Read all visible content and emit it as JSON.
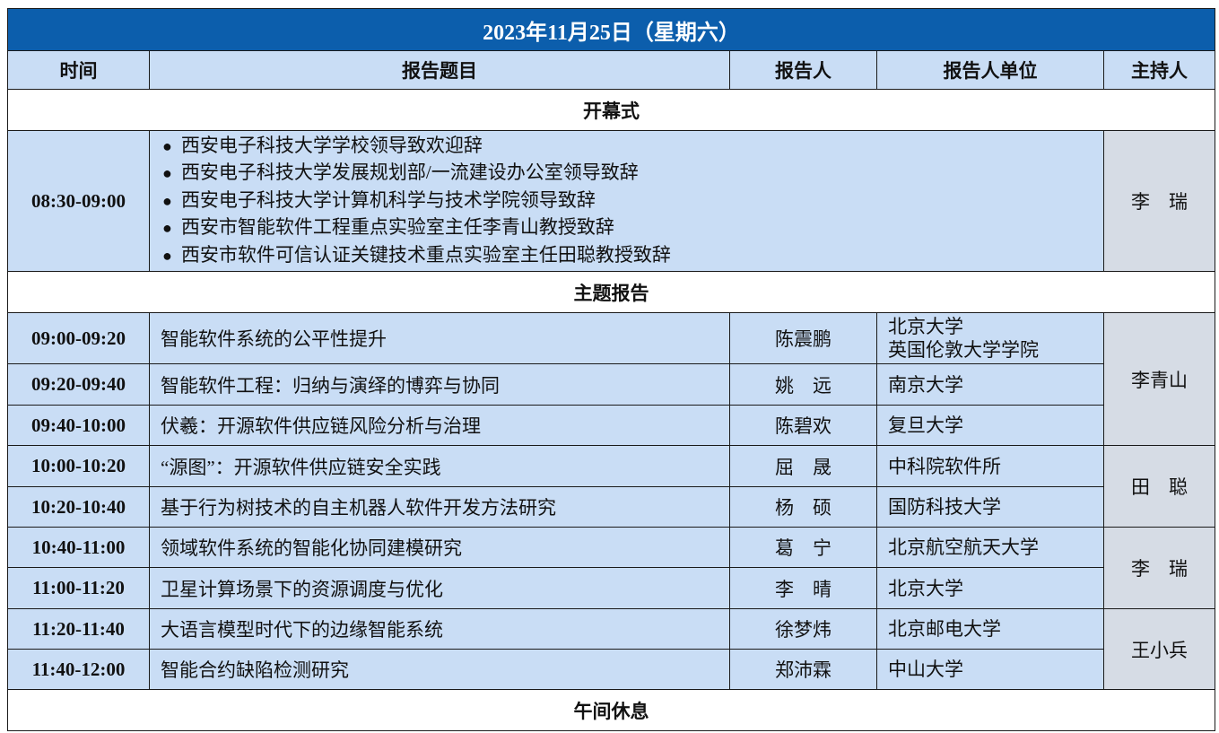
{
  "title": "2023年11月25日（星期六）",
  "headers": [
    "时间",
    "报告题目",
    "报告人",
    "报告人单位",
    "主持人"
  ],
  "sections": {
    "opening": "开幕式",
    "keynote": "主题报告",
    "lunch": "午间休息"
  },
  "opening": {
    "time": "08:30-09:00",
    "items": [
      "西安电子科技大学学校领导致欢迎辞",
      "西安电子科技大学发展规划部/一流建设办公室领导致辞",
      "西安电子科技大学计算机科学与技术学院领导致辞",
      "西安市智能软件工程重点实验室主任李青山教授致辞",
      "西安市软件可信认证关键技术重点实验室主任田聪教授致辞"
    ],
    "host": "李　瑞"
  },
  "talks": [
    {
      "time": "09:00-09:20",
      "topic": "智能软件系统的公平性提升",
      "speaker": "陈震鹏",
      "org": [
        "北京大学",
        "英国伦敦大学学院"
      ]
    },
    {
      "time": "09:20-09:40",
      "topic": "智能软件工程：归纳与演绎的博弈与协同",
      "speaker": "姚　远",
      "org": [
        "南京大学"
      ]
    },
    {
      "time": "09:40-10:00",
      "topic": "伏羲：开源软件供应链风险分析与治理",
      "speaker": "陈碧欢",
      "org": [
        "复旦大学"
      ]
    },
    {
      "time": "10:00-10:20",
      "topic": "“源图”：开源软件供应链安全实践",
      "speaker": "屈　晟",
      "org": [
        "中科院软件所"
      ]
    },
    {
      "time": "10:20-10:40",
      "topic": "基于行为树技术的自主机器人软件开发方法研究",
      "speaker": "杨　硕",
      "org": [
        "国防科技大学"
      ]
    },
    {
      "time": "10:40-11:00",
      "topic": "领域软件系统的智能化协同建模研究",
      "speaker": "葛　宁",
      "org": [
        "北京航空航天大学"
      ]
    },
    {
      "time": "11:00-11:20",
      "topic": "卫星计算场景下的资源调度与优化",
      "speaker": "李　晴",
      "org": [
        "北京大学"
      ]
    },
    {
      "time": "11:20-11:40",
      "topic": "大语言模型时代下的边缘智能系统",
      "speaker": "徐梦炜",
      "org": [
        "北京邮电大学"
      ]
    },
    {
      "time": "11:40-12:00",
      "topic": "智能合约缺陷检测研究",
      "speaker": "郑沛霖",
      "org": [
        "中山大学"
      ]
    }
  ],
  "hosts": [
    {
      "name": "李青山",
      "rows": 3
    },
    {
      "name": "田　聪",
      "rows": 2
    },
    {
      "name": "李　瑞",
      "rows": 2
    },
    {
      "name": "王小兵",
      "rows": 2
    }
  ],
  "colors": {
    "title_bg": "#0c5eac",
    "cell_bg": "#c9ddf5",
    "host_bg": "#d6dce5"
  }
}
